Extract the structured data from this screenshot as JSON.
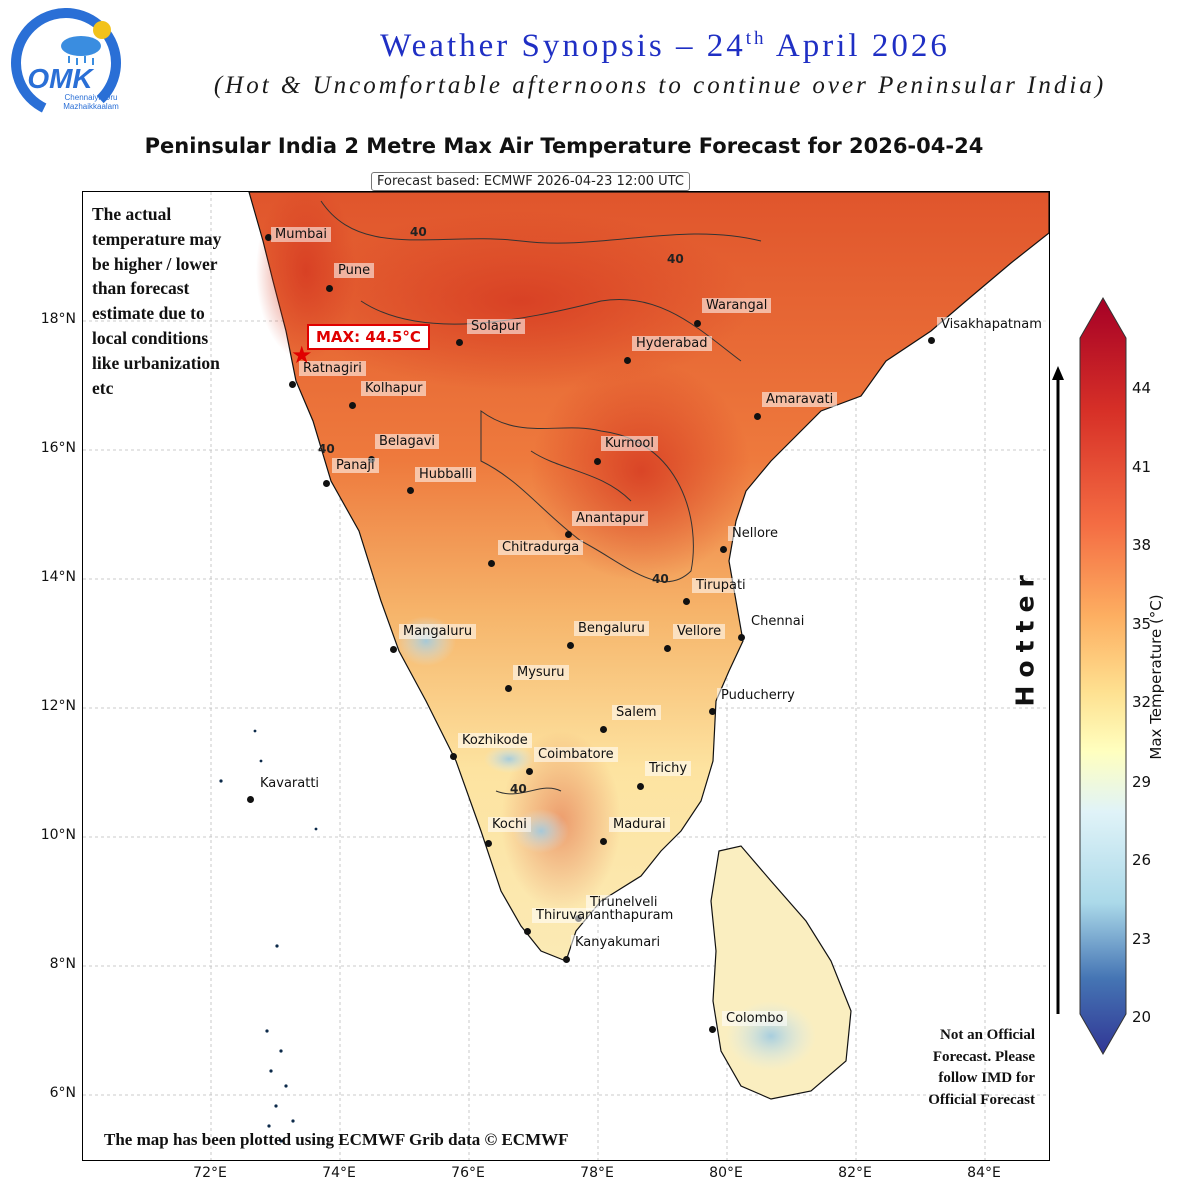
{
  "logo": {
    "wordmark": "OMK",
    "tagline_1": "Chennaiyil Oru",
    "tagline_2": "Mazhaikkaalam"
  },
  "header": {
    "title_main": "Weather Synopsis – 24",
    "title_sup": "th",
    "title_end": " April 2026",
    "subtitle": "(Hot & Uncomfortable afternoons to continue over Peninsular India)"
  },
  "map": {
    "title": "Peninsular India 2 Metre Max Air Temperature Forecast for 2026-04-24",
    "forecast_based": "Forecast based: ECMWF 2026-04-23 12:00 UTC",
    "max_label": "MAX: 44.5°C",
    "max_value_c": 44.5,
    "lat_ticks": [
      "18°N",
      "16°N",
      "14°N",
      "12°N",
      "10°N",
      "8°N",
      "6°N"
    ],
    "lon_ticks": [
      "72°E",
      "74°E",
      "76°E",
      "78°E",
      "80°E",
      "82°E",
      "84°E"
    ],
    "contour_value": "40",
    "cities": [
      "Mumbai",
      "Pune",
      "Solapur",
      "Warangal",
      "Visakhapatnam",
      "Hyderabad",
      "Ratnagiri",
      "Kolhapur",
      "Amaravati",
      "Belagavi",
      "Kurnool",
      "Panaji",
      "Hubballi",
      "Anantapur",
      "Nellore",
      "Chitradurga",
      "Tirupati",
      "Chennai",
      "Mangaluru",
      "Bengaluru",
      "Vellore",
      "Mysuru",
      "Puducherry",
      "Salem",
      "Kozhikode",
      "Coimbatore",
      "Trichy",
      "Kavaratti",
      "Kochi",
      "Madurai",
      "Tirunelveli",
      "Thiruvananthapuram",
      "Kanyakumari",
      "Colombo"
    ]
  },
  "notes": {
    "left": "The actual temperature may be higher / lower than forecast estimate due to local conditions like urbanization etc",
    "right": "Not an Official Forecast. Please follow IMD for Official Forecast",
    "bottom": "The map has been plotted using ECMWF Grib data © ECMWF"
  },
  "hotter_label": "Hotter",
  "colorbar": {
    "label": "Max Temperature (°C)",
    "ticks": [
      "44",
      "41",
      "38",
      "35",
      "32",
      "29",
      "26",
      "23",
      "20"
    ],
    "min": 20,
    "max": 44,
    "colors": {
      "cold": "#313695",
      "cool": "#74add1",
      "mild": "#e0f3f8",
      "warm": "#fee090",
      "hot": "#f46d43",
      "hottest": "#a50026"
    }
  }
}
